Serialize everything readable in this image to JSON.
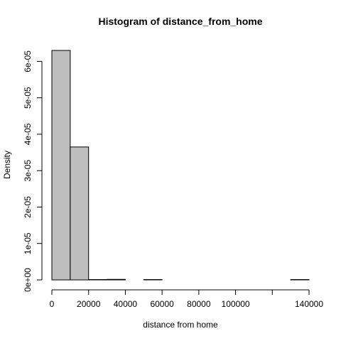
{
  "chart_data": {
    "type": "bar",
    "title": "Histogram of distance_from_home",
    "xlabel": "distance from home",
    "ylabel": "Density",
    "x_breaks": [
      0,
      10000,
      20000,
      30000,
      40000,
      50000,
      60000,
      70000,
      80000,
      90000,
      100000,
      110000,
      120000,
      130000,
      140000
    ],
    "values": [
      6.3e-05,
      3.65e-05,
      1e-07,
      1.5e-07,
      0,
      1e-07,
      0,
      0,
      0,
      0,
      0,
      0,
      0,
      1e-07
    ],
    "xlim": [
      0,
      140000
    ],
    "ylim": [
      0,
      6.5e-05
    ],
    "x_ticks": [
      0,
      20000,
      40000,
      60000,
      80000,
      100000,
      120000,
      140000
    ],
    "x_tick_labels": [
      "0",
      "20000",
      "40000",
      "60000",
      "80000",
      "100000",
      "",
      "140000"
    ],
    "y_ticks": [
      0,
      1e-05,
      2e-05,
      3e-05,
      4e-05,
      5e-05,
      6e-05
    ],
    "y_tick_labels": [
      "0e+00",
      "1e-05",
      "2e-05",
      "3e-05",
      "4e-05",
      "5e-05",
      "6e-05"
    ],
    "bar_color": "#bebebe",
    "grid": false,
    "legend": "none"
  }
}
